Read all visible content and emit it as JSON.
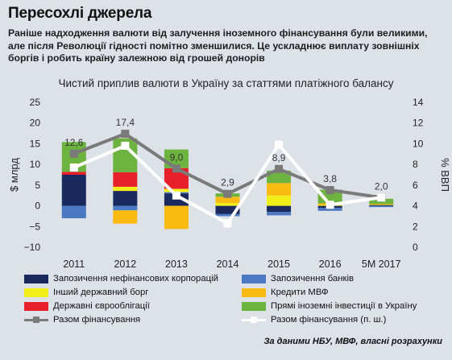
{
  "title": "Пересохлі джерела",
  "subtitle": "Раніше надходження валюти від залучення іноземного фінансування були великими, але після Революції гідності помітно зменшилися. Це ускладнює виплату зовнішніх боргів і робить країну залежною від грошей донорів",
  "source": "За даними НБУ, МВФ, власні розрахунки",
  "colors": {
    "corp": "#1b2a5e",
    "banks": "#4a78c2",
    "gov_other": "#f2ee1c",
    "imf": "#f9bb12",
    "eurobonds": "#e8202a",
    "fdi": "#6db33f",
    "total_line": "#7a7a7a",
    "gdp_line": "#ffffff"
  },
  "chart_data": {
    "type": "bar",
    "title": "Чистий приплив валюти в Україну за статтями платіжного балансу",
    "ylabel": "$ млрд",
    "y2label": "% ВВП",
    "ylim": [
      -10,
      25
    ],
    "y2lim": [
      0,
      14
    ],
    "yticks": [
      -10,
      -5,
      0,
      5,
      10,
      15,
      20,
      25
    ],
    "y2ticks": [
      0,
      2,
      4,
      6,
      8,
      10,
      12,
      14
    ],
    "categories": [
      "2011",
      "2012",
      "2013",
      "2014",
      "2015",
      "2016",
      "5М 2017"
    ],
    "series": [
      {
        "name": "Запозичення нефінансових корпорацій",
        "key": "corp",
        "values": [
          7.5,
          3.6,
          3.0,
          -2.0,
          -1.5,
          -0.5,
          0.2
        ]
      },
      {
        "name": "Запозичення банків",
        "key": "banks",
        "values": [
          -3.0,
          -1.1,
          0.3,
          -0.5,
          -0.8,
          -0.7,
          -0.3
        ]
      },
      {
        "name": "Інший державний борг",
        "key": "gov_other",
        "values": [
          0.0,
          1.0,
          0.8,
          0.7,
          2.5,
          0.2,
          0.1
        ]
      },
      {
        "name": "Кредити МВФ",
        "key": "imf",
        "values": [
          0.0,
          -3.2,
          -5.6,
          1.5,
          3.0,
          0.4,
          0.2
        ]
      },
      {
        "name": "Державні єврооблігації",
        "key": "eurobonds",
        "values": [
          0.7,
          3.5,
          5.0,
          0.0,
          0.0,
          0.0,
          0.0
        ]
      },
      {
        "name": "Прямі іноземні інвестиції в Україну",
        "key": "fdi",
        "values": [
          7.2,
          8.2,
          4.5,
          0.8,
          3.0,
          3.3,
          1.2
        ]
      }
    ],
    "lines": [
      {
        "name": "Разом фінансування",
        "key": "total_line",
        "axis": "left",
        "values": [
          12.6,
          17.4,
          9.0,
          2.9,
          8.9,
          3.8,
          2.0
        ]
      },
      {
        "name": "Разом фінансування (п. ш.)",
        "key": "gdp_line",
        "axis": "right",
        "values": [
          7.7,
          9.8,
          5.0,
          2.3,
          9.9,
          4.1,
          4.8
        ]
      }
    ],
    "data_labels": [
      "12,6",
      "17,4",
      "9,0",
      "2,9",
      "8,9",
      "3,8",
      "2,0"
    ]
  }
}
